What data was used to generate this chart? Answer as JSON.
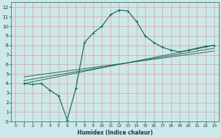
{
  "xlabel": "Humidex (Indice chaleur)",
  "bg_color": "#cce8e8",
  "grid_color": "#e89898",
  "line_color": "#1a6b5a",
  "xlim": [
    -0.5,
    23.5
  ],
  "ylim": [
    0,
    12.5
  ],
  "xticks": [
    0,
    1,
    2,
    3,
    4,
    5,
    6,
    7,
    8,
    9,
    10,
    11,
    12,
    13,
    14,
    15,
    16,
    17,
    18,
    19,
    20,
    21,
    22,
    23
  ],
  "yticks": [
    0,
    1,
    2,
    3,
    4,
    5,
    6,
    7,
    8,
    9,
    10,
    11,
    12
  ],
  "curve_x": [
    1,
    2,
    3,
    4,
    5,
    6,
    7,
    8,
    9,
    10,
    11,
    12,
    13,
    14,
    15,
    16,
    17,
    18,
    19,
    20,
    21,
    22,
    23
  ],
  "curve_y": [
    4.0,
    3.9,
    4.0,
    3.3,
    2.7,
    0.2,
    3.5,
    8.3,
    9.3,
    10.0,
    11.2,
    11.7,
    11.6,
    10.5,
    9.0,
    8.3,
    7.8,
    7.5,
    7.3,
    7.5,
    7.7,
    7.9,
    8.0
  ],
  "reg_line1_x": [
    1,
    23
  ],
  "reg_line1_y": [
    4.0,
    8.0
  ],
  "reg_line2_x": [
    1,
    23
  ],
  "reg_line2_y": [
    4.3,
    7.7
  ],
  "reg_line3_x": [
    1,
    23
  ],
  "reg_line3_y": [
    4.7,
    7.4
  ]
}
